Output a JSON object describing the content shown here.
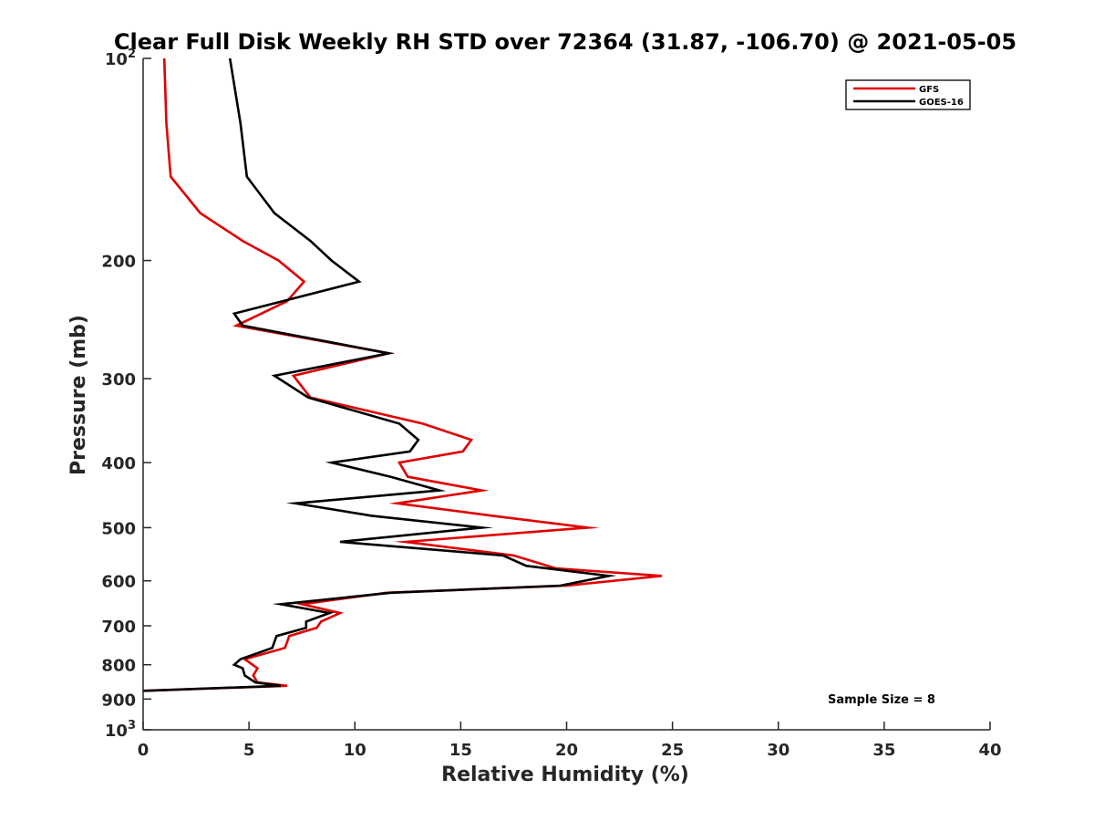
{
  "chart_data": {
    "type": "line",
    "title": "Clear Full Disk Weekly RH STD over 72364 (31.87, -106.70) @ 2021-05-05",
    "xlabel": "Relative Humidity (%)",
    "ylabel": "Pressure (mb)",
    "xlim": [
      0,
      40
    ],
    "ylim": [
      100,
      1000
    ],
    "y_scale": "log",
    "y_reversed": true,
    "x_ticks": [
      "0",
      "5",
      "10",
      "15",
      "20",
      "25",
      "30",
      "35",
      "40"
    ],
    "x_tick_values": [
      0,
      5,
      10,
      15,
      20,
      25,
      30,
      35,
      40
    ],
    "y_ticks": [
      {
        "value": 100,
        "base": "10",
        "exp": "2"
      },
      {
        "value": 200,
        "label": "200"
      },
      {
        "value": 300,
        "label": "300"
      },
      {
        "value": 400,
        "label": "400"
      },
      {
        "value": 500,
        "label": "500"
      },
      {
        "value": 600,
        "label": "600"
      },
      {
        "value": 700,
        "label": "700"
      },
      {
        "value": 800,
        "label": "800"
      },
      {
        "value": 900,
        "label": "900"
      },
      {
        "value": 1000,
        "base": "10",
        "exp": "3"
      }
    ],
    "grid": false,
    "legend_position": "top-right",
    "annotation": "Sample Size = 8",
    "series": [
      {
        "name": "GFS",
        "color": "#e00000",
        "points": [
          [
            1.0,
            100
          ],
          [
            1.1,
            125
          ],
          [
            1.3,
            150
          ],
          [
            2.7,
            170
          ],
          [
            4.7,
            187
          ],
          [
            6.4,
            200
          ],
          [
            7.6,
            215
          ],
          [
            6.8,
            230
          ],
          [
            4.4,
            250
          ],
          [
            11.6,
            275
          ],
          [
            7.1,
            297
          ],
          [
            7.9,
            320
          ],
          [
            13.2,
            350
          ],
          [
            15.5,
            370
          ],
          [
            15.1,
            385
          ],
          [
            12.1,
            400
          ],
          [
            12.5,
            420
          ],
          [
            16.0,
            440
          ],
          [
            12.0,
            460
          ],
          [
            16.5,
            480
          ],
          [
            21.0,
            500
          ],
          [
            12.4,
            525
          ],
          [
            17.5,
            550
          ],
          [
            19.5,
            575
          ],
          [
            24.5,
            590
          ],
          [
            20.0,
            610
          ],
          [
            11.5,
            625
          ],
          [
            7.5,
            650
          ],
          [
            9.3,
            670
          ],
          [
            8.4,
            690
          ],
          [
            8.2,
            705
          ],
          [
            6.9,
            725
          ],
          [
            6.7,
            755
          ],
          [
            4.8,
            785
          ],
          [
            5.4,
            810
          ],
          [
            5.2,
            830
          ],
          [
            5.4,
            850
          ],
          [
            6.8,
            860
          ],
          [
            0.0,
            875
          ]
        ]
      },
      {
        "name": "GOES-16",
        "color": "#000000",
        "points": [
          [
            4.1,
            100
          ],
          [
            4.6,
            125
          ],
          [
            4.9,
            150
          ],
          [
            6.2,
            170
          ],
          [
            7.9,
            187
          ],
          [
            8.9,
            200
          ],
          [
            10.2,
            215
          ],
          [
            4.3,
            240
          ],
          [
            4.7,
            250
          ],
          [
            11.6,
            275
          ],
          [
            6.2,
            297
          ],
          [
            7.8,
            320
          ],
          [
            12.1,
            350
          ],
          [
            13.0,
            370
          ],
          [
            12.6,
            385
          ],
          [
            8.9,
            400
          ],
          [
            11.7,
            420
          ],
          [
            14.0,
            440
          ],
          [
            7.2,
            460
          ],
          [
            10.8,
            480
          ],
          [
            16.0,
            500
          ],
          [
            9.3,
            525
          ],
          [
            17.0,
            550
          ],
          [
            18.1,
            570
          ],
          [
            22.0,
            590
          ],
          [
            19.7,
            610
          ],
          [
            11.7,
            625
          ],
          [
            6.5,
            650
          ],
          [
            8.8,
            670
          ],
          [
            7.7,
            690
          ],
          [
            7.7,
            705
          ],
          [
            6.3,
            725
          ],
          [
            6.1,
            755
          ],
          [
            4.6,
            785
          ],
          [
            4.3,
            800
          ],
          [
            4.7,
            810
          ],
          [
            4.8,
            830
          ],
          [
            5.3,
            850
          ],
          [
            6.5,
            860
          ],
          [
            0.0,
            875
          ]
        ]
      }
    ]
  }
}
